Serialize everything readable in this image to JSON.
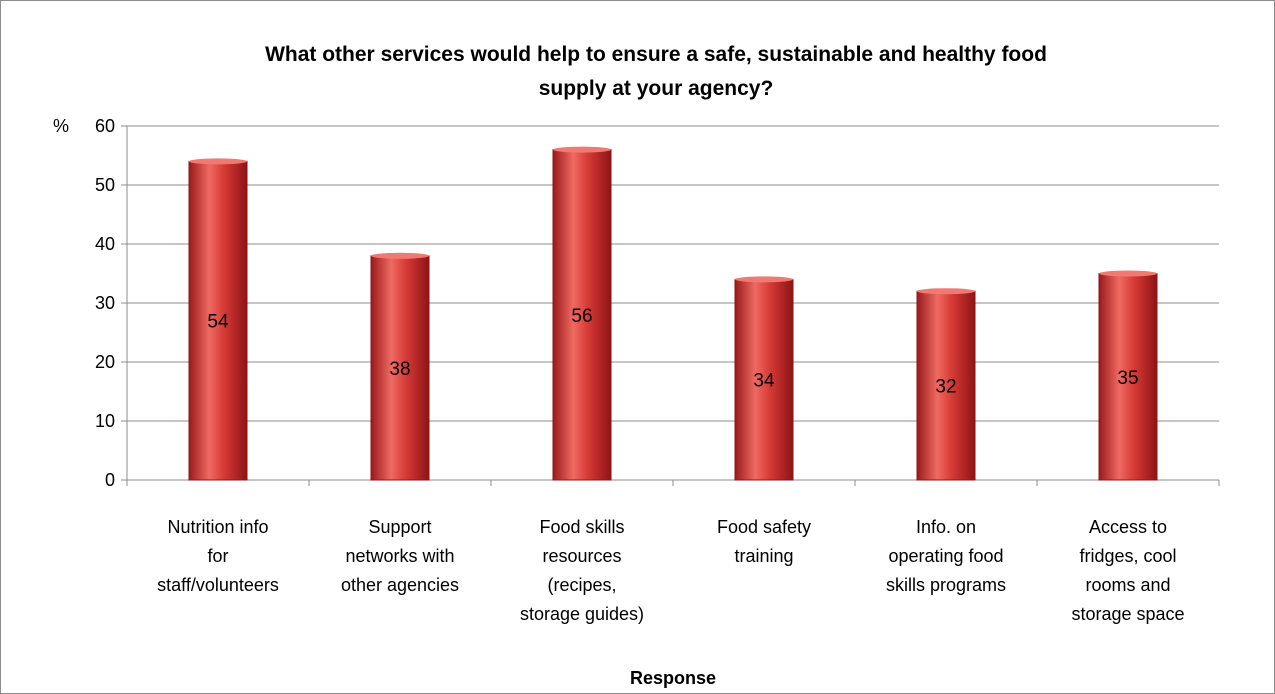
{
  "chart_data": {
    "type": "bar",
    "title_lines": [
      "What other services would help to ensure a safe, sustainable and healthy food",
      "supply at your agency?"
    ],
    "xlabel": "Response",
    "ylabel": "%",
    "ylim": [
      0,
      60
    ],
    "yticks": [
      0,
      10,
      20,
      30,
      40,
      50,
      60
    ],
    "grid": true,
    "legend": "none",
    "categories": [
      [
        "Nutrition info",
        "for",
        "staff/volunteers"
      ],
      [
        "Support",
        "networks with",
        "other agencies"
      ],
      [
        "Food skills",
        "resources",
        "(recipes,",
        "storage guides)"
      ],
      [
        "Food safety",
        "training"
      ],
      [
        "Info. on",
        "operating food",
        "skills programs"
      ],
      [
        "Access to",
        "fridges, cool",
        "rooms and",
        "storage space"
      ]
    ],
    "values": [
      54,
      38,
      56,
      34,
      32,
      35
    ],
    "colors": {
      "bar_fill": "#c0262a",
      "bar_highlight": "#ef6a62",
      "bar_dark": "#8e1416",
      "gridline": "#8c8c8c",
      "axis": "#8c8c8c"
    }
  }
}
